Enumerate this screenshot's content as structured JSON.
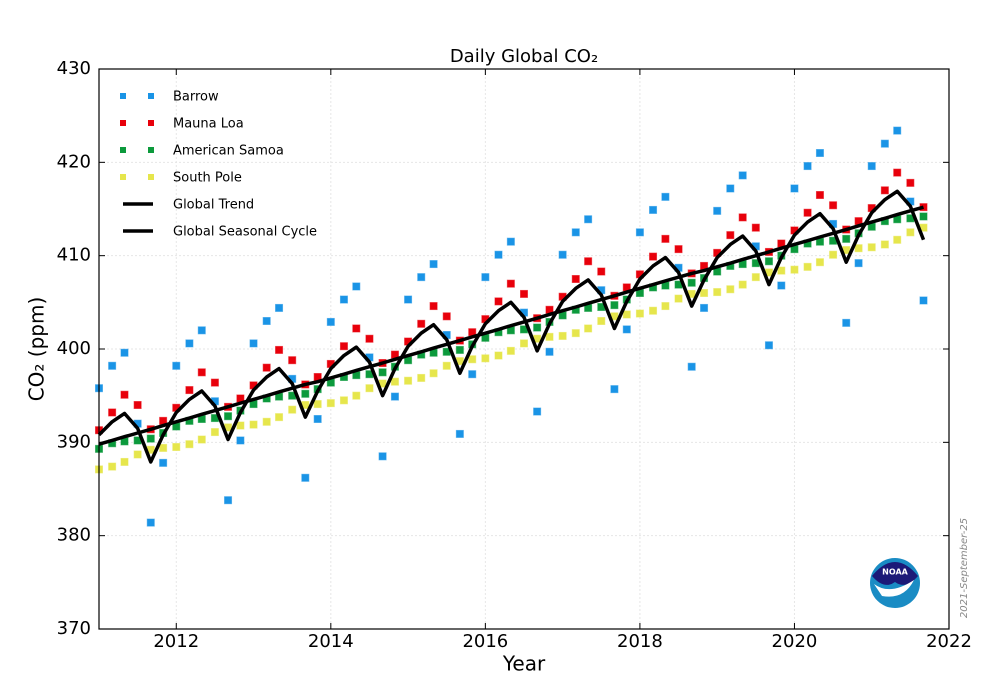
{
  "chart_data": {
    "type": "scatter",
    "title": "Daily Global CO₂",
    "x_label": "Year",
    "y_label": "CO₂ (ppm)",
    "date_note": "2021-September-25",
    "logo_text": "NOAA",
    "xlim": [
      2011,
      2022
    ],
    "xticks": [
      2012,
      2014,
      2016,
      2018,
      2020,
      2022
    ],
    "ylim": [
      370,
      430
    ],
    "yticks": [
      370,
      380,
      390,
      400,
      410,
      420,
      430
    ],
    "grid": true,
    "legend": "upper left",
    "x": [
      2011,
      2011.17,
      2011.33,
      2011.5,
      2011.67,
      2011.83,
      2012,
      2012.17,
      2012.33,
      2012.5,
      2012.67,
      2012.83,
      2013,
      2013.17,
      2013.33,
      2013.5,
      2013.67,
      2013.83,
      2014,
      2014.17,
      2014.33,
      2014.5,
      2014.67,
      2014.83,
      2015,
      2015.17,
      2015.33,
      2015.5,
      2015.67,
      2015.83,
      2016,
      2016.17,
      2016.33,
      2016.5,
      2016.67,
      2016.83,
      2017,
      2017.17,
      2017.33,
      2017.5,
      2017.67,
      2017.83,
      2018,
      2018.17,
      2018.33,
      2018.5,
      2018.67,
      2018.83,
      2019,
      2019.17,
      2019.33,
      2019.5,
      2019.67,
      2019.83,
      2020,
      2020.17,
      2020.33,
      2020.5,
      2020.67,
      2020.83,
      2021,
      2021.17,
      2021.33,
      2021.5,
      2021.67
    ],
    "series": [
      {
        "name": "Barrow",
        "style": "markers",
        "color": "#1a94e6",
        "values": [
          395.8,
          398.2,
          399.6,
          392.0,
          381.4,
          387.8,
          398.2,
          400.6,
          402.0,
          394.4,
          383.8,
          390.2,
          400.6,
          403.0,
          404.4,
          396.8,
          386.2,
          392.5,
          402.9,
          405.3,
          406.7,
          399.1,
          388.5,
          394.9,
          405.3,
          407.7,
          409.1,
          401.5,
          390.9,
          397.3,
          407.7,
          410.1,
          411.5,
          403.9,
          393.3,
          399.7,
          410.1,
          412.5,
          413.9,
          406.3,
          395.7,
          402.1,
          412.5,
          414.9,
          416.3,
          408.7,
          398.1,
          404.4,
          414.8,
          417.2,
          418.6,
          411.0,
          400.4,
          406.8,
          417.2,
          419.6,
          421.0,
          413.4,
          402.8,
          409.2,
          419.6,
          422.0,
          423.4,
          415.8,
          405.2
        ]
      },
      {
        "name": "Mauna Loa",
        "style": "markers",
        "color": "#e8000b",
        "values": [
          391.3,
          393.2,
          395.1,
          394.0,
          391.4,
          392.3,
          393.7,
          395.6,
          397.5,
          396.4,
          393.8,
          394.7,
          396.1,
          398.0,
          399.9,
          398.8,
          396.2,
          397.0,
          398.4,
          400.3,
          402.2,
          401.1,
          398.5,
          399.4,
          400.8,
          402.7,
          404.6,
          403.5,
          400.9,
          401.8,
          403.2,
          405.1,
          407.0,
          405.9,
          403.3,
          404.2,
          405.6,
          407.5,
          409.4,
          408.3,
          405.7,
          406.6,
          408.0,
          409.9,
          411.8,
          410.7,
          408.1,
          408.9,
          410.3,
          412.2,
          414.1,
          413.0,
          410.4,
          411.3,
          412.7,
          414.6,
          416.5,
          415.4,
          412.8,
          413.7,
          415.1,
          417.0,
          418.9,
          417.8,
          415.2
        ]
      },
      {
        "name": "American Samoa",
        "style": "markers",
        "color": "#0c9a3c",
        "values": [
          389.3,
          389.9,
          390.1,
          390.2,
          390.4,
          391.0,
          391.7,
          392.3,
          392.5,
          392.6,
          392.8,
          393.4,
          394.1,
          394.7,
          394.9,
          395.0,
          395.2,
          395.7,
          396.4,
          397.0,
          397.2,
          397.3,
          397.5,
          398.1,
          398.8,
          399.4,
          399.6,
          399.7,
          399.9,
          400.5,
          401.2,
          401.8,
          402.0,
          402.1,
          402.3,
          402.9,
          403.6,
          404.2,
          404.4,
          404.5,
          404.7,
          405.3,
          406.0,
          406.6,
          406.8,
          406.9,
          407.1,
          407.6,
          408.3,
          408.9,
          409.1,
          409.2,
          409.4,
          410.0,
          410.7,
          411.3,
          411.5,
          411.6,
          411.8,
          412.4,
          413.1,
          413.7,
          413.9,
          414.0,
          414.2
        ]
      },
      {
        "name": "South Pole",
        "style": "markers",
        "color": "#e6e64c",
        "values": [
          387.1,
          387.4,
          387.9,
          388.7,
          389.2,
          389.4,
          389.5,
          389.8,
          390.3,
          391.1,
          391.6,
          391.8,
          391.9,
          392.2,
          392.7,
          393.5,
          394.0,
          394.1,
          394.2,
          394.5,
          395.0,
          395.8,
          396.3,
          396.5,
          396.6,
          396.9,
          397.4,
          398.2,
          398.7,
          398.9,
          399.0,
          399.3,
          399.8,
          400.6,
          401.1,
          401.3,
          401.4,
          401.7,
          402.2,
          403.0,
          403.5,
          403.7,
          403.8,
          404.1,
          404.6,
          405.4,
          405.9,
          406.0,
          406.1,
          406.4,
          406.9,
          407.7,
          408.2,
          408.4,
          408.5,
          408.8,
          409.3,
          410.1,
          410.6,
          410.8,
          410.9,
          411.2,
          411.7,
          412.5,
          413.0
        ]
      },
      {
        "name": "Global Trend",
        "style": "line",
        "color": "#000000",
        "values": [
          389.8,
          390.2,
          390.6,
          391.0,
          391.4,
          391.8,
          392.2,
          392.6,
          393.0,
          393.4,
          393.8,
          394.2,
          394.6,
          395.0,
          395.4,
          395.8,
          396.2,
          396.5,
          396.9,
          397.3,
          397.7,
          398.1,
          398.5,
          398.9,
          399.3,
          399.7,
          400.1,
          400.5,
          400.9,
          401.3,
          401.7,
          402.1,
          402.5,
          402.9,
          403.3,
          403.7,
          404.1,
          404.5,
          404.9,
          405.3,
          405.7,
          406.1,
          406.5,
          406.9,
          407.3,
          407.7,
          408.1,
          408.4,
          408.8,
          409.2,
          409.6,
          410.0,
          410.4,
          410.8,
          411.2,
          411.6,
          412.0,
          412.4,
          412.8,
          413.2,
          413.6,
          414.0,
          414.4,
          414.8,
          415.2
        ]
      },
      {
        "name": "Global Seasonal Cycle",
        "style": "line",
        "color": "#000000",
        "values": [
          390.8,
          392.2,
          393.1,
          391.5,
          387.9,
          390.8,
          393.2,
          394.6,
          395.5,
          393.9,
          390.3,
          393.2,
          395.6,
          397.0,
          397.9,
          396.3,
          392.7,
          395.5,
          397.9,
          399.3,
          400.2,
          398.6,
          395.0,
          397.9,
          400.3,
          401.7,
          402.6,
          401.0,
          397.4,
          400.3,
          402.7,
          404.1,
          405.0,
          403.4,
          399.8,
          402.7,
          405.1,
          406.5,
          407.4,
          405.8,
          402.2,
          405.1,
          407.5,
          408.9,
          409.8,
          408.2,
          404.6,
          407.4,
          409.8,
          411.2,
          412.1,
          410.5,
          406.9,
          409.8,
          412.2,
          413.6,
          414.5,
          412.9,
          409.3,
          412.2,
          414.6,
          416.0,
          416.9,
          415.3,
          411.7
        ]
      }
    ]
  }
}
